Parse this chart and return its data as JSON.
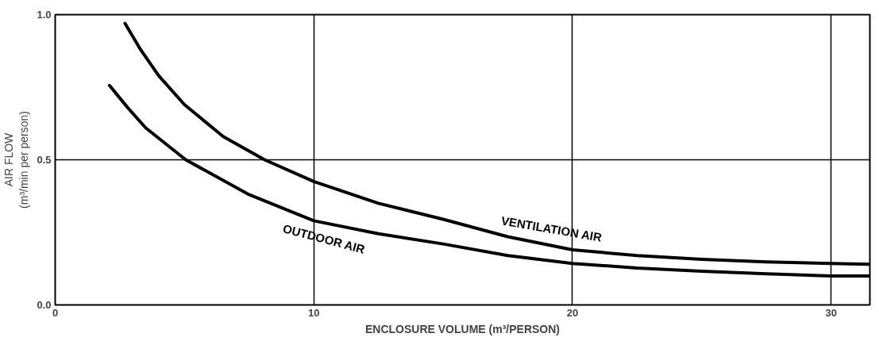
{
  "chart_data": {
    "type": "line",
    "xlabel": "ENCLOSURE VOLUME (m³/PERSON)",
    "ylabel": "AIR FLOW\n(m³/min per person)",
    "xlim": [
      0,
      31.5
    ],
    "ylim": [
      0,
      1.0
    ],
    "xticks": [
      0,
      10,
      20,
      30
    ],
    "yticks": [
      {
        "value": 0,
        "label": "0.0"
      },
      {
        "value": 0.5,
        "label": "0.5"
      },
      {
        "value": 1.0,
        "label": "1.0"
      }
    ],
    "grid": true,
    "marker": "none",
    "line_style": "solid",
    "series": [
      {
        "name": "VENTILATION AIR",
        "color": "#000000",
        "x": [
          2.7,
          3.3,
          4,
          5,
          6.5,
          8.1,
          10,
          12.5,
          15,
          17.5,
          20,
          22.5,
          25,
          27.5,
          30,
          31.5
        ],
        "values": [
          0.97,
          0.88,
          0.79,
          0.69,
          0.58,
          0.5,
          0.425,
          0.35,
          0.295,
          0.235,
          0.19,
          0.17,
          0.157,
          0.148,
          0.143,
          0.14
        ]
      },
      {
        "name": "OUTDOOR AIR",
        "color": "#000000",
        "x": [
          2.1,
          2.8,
          3.5,
          5.05,
          7.5,
          10,
          12.5,
          15,
          17.5,
          20,
          22.5,
          25,
          27.5,
          30,
          31.5
        ],
        "values": [
          0.756,
          0.68,
          0.61,
          0.5,
          0.38,
          0.29,
          0.245,
          0.21,
          0.17,
          0.143,
          0.127,
          0.116,
          0.107,
          0.1,
          0.1
        ]
      }
    ]
  }
}
